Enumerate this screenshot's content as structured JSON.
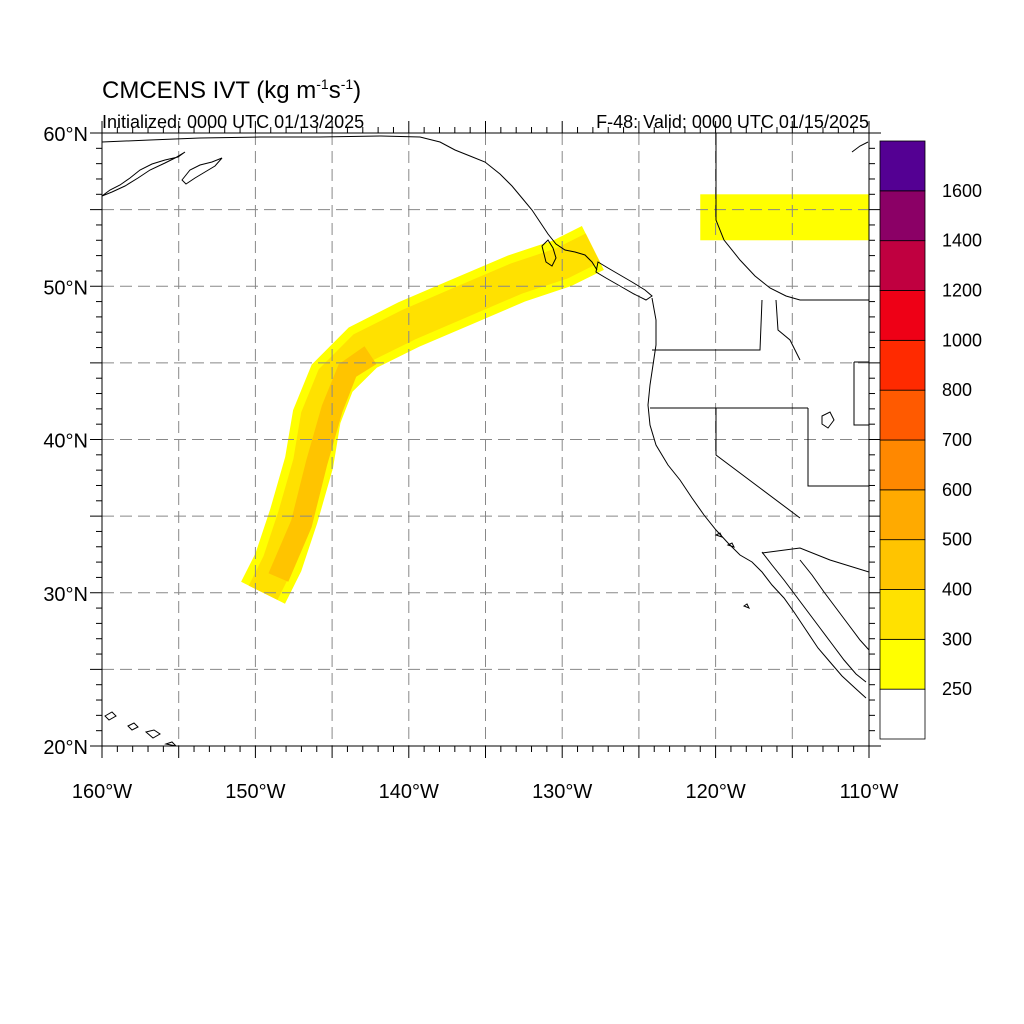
{
  "title": {
    "main": "CMCENS IVT (kg m",
    "exp1": "-1",
    "mid": "s",
    "exp2": "-1",
    "close": ")"
  },
  "init_text": "Initialized: 0000 UTC 01/13/2025",
  "valid_text": "F-48: Valid: 0000 UTC 01/15/2025",
  "map": {
    "lon_range": [
      -160,
      -110
    ],
    "lat_range": [
      20,
      60
    ],
    "lon_ticks": [
      {
        "value": -160,
        "label": "160°W"
      },
      {
        "value": -150,
        "label": "150°W"
      },
      {
        "value": -140,
        "label": "140°W"
      },
      {
        "value": -130,
        "label": "130°W"
      },
      {
        "value": -120,
        "label": "120°W"
      },
      {
        "value": -110,
        "label": "110°W"
      }
    ],
    "lat_ticks": [
      {
        "value": 20,
        "label": "20°N"
      },
      {
        "value": 30,
        "label": "30°N"
      },
      {
        "value": 40,
        "label": "40°N"
      },
      {
        "value": 50,
        "label": "50°N"
      },
      {
        "value": 60,
        "label": "60°N"
      }
    ],
    "grid_lons": [
      -155,
      -150,
      -145,
      -140,
      -135,
      -130,
      -125,
      -120,
      -115
    ],
    "grid_lats": [
      25,
      30,
      35,
      40,
      45,
      50,
      55
    ],
    "grid_style": "dashed gray"
  },
  "colorbar": {
    "levels": [
      250,
      300,
      400,
      500,
      600,
      700,
      800,
      1000,
      1200,
      1400,
      1600
    ],
    "colors": [
      "#ffffff",
      "#ffff00",
      "#ffe100",
      "#ffc400",
      "#ffaa00",
      "#ff8800",
      "#ff5a00",
      "#ff2a00",
      "#ee0016",
      "#c00040",
      "#8b0066",
      "#540093"
    ]
  },
  "ivt_features": [
    {
      "name": "atmospheric river",
      "value_range": [
        250,
        500
      ],
      "path": [
        [
          -149.5,
          30.0
        ],
        [
          -148.5,
          32.0
        ],
        [
          -147.5,
          35.0
        ],
        [
          -146.5,
          38.5
        ],
        [
          -146.0,
          41.5
        ],
        [
          -145.0,
          44.0
        ],
        [
          -143.0,
          46.0
        ],
        [
          -140.0,
          47.5
        ],
        [
          -136.5,
          49.0
        ],
        [
          -133.0,
          50.5
        ],
        [
          -130.0,
          51.5
        ],
        [
          -128.0,
          52.5
        ]
      ],
      "core_path": [
        [
          -148.5,
          31.0
        ],
        [
          -147.0,
          34.5
        ],
        [
          -146.0,
          38.5
        ],
        [
          -145.0,
          42.0
        ],
        [
          -144.0,
          44.5
        ],
        [
          -142.5,
          45.5
        ]
      ]
    },
    {
      "name": "interior plume",
      "value_range": [
        250,
        300
      ],
      "lon_range": [
        -121,
        -110
      ],
      "lat_range": [
        53,
        56
      ]
    }
  ]
}
